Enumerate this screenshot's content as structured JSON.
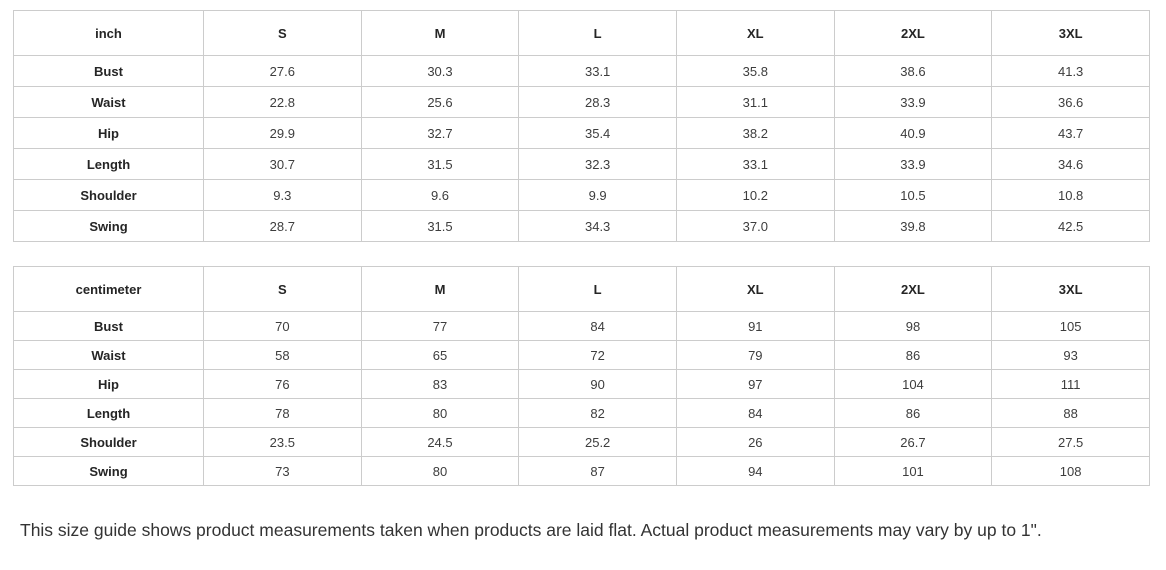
{
  "tables": [
    {
      "unit": "inch",
      "sizes": [
        "S",
        "M",
        "L",
        "XL",
        "2XL",
        "3XL"
      ],
      "rows": [
        {
          "label": "Bust",
          "values": [
            "27.6",
            "30.3",
            "33.1",
            "35.8",
            "38.6",
            "41.3"
          ]
        },
        {
          "label": "Waist",
          "values": [
            "22.8",
            "25.6",
            "28.3",
            "31.1",
            "33.9",
            "36.6"
          ]
        },
        {
          "label": "Hip",
          "values": [
            "29.9",
            "32.7",
            "35.4",
            "38.2",
            "40.9",
            "43.7"
          ]
        },
        {
          "label": "Length",
          "values": [
            "30.7",
            "31.5",
            "32.3",
            "33.1",
            "33.9",
            "34.6"
          ]
        },
        {
          "label": "Shoulder",
          "values": [
            "9.3",
            "9.6",
            "9.9",
            "10.2",
            "10.5",
            "10.8"
          ]
        },
        {
          "label": "Swing",
          "values": [
            "28.7",
            "31.5",
            "34.3",
            "37.0",
            "39.8",
            "42.5"
          ]
        }
      ]
    },
    {
      "unit": "centimeter",
      "sizes": [
        "S",
        "M",
        "L",
        "XL",
        "2XL",
        "3XL"
      ],
      "rows": [
        {
          "label": "Bust",
          "values": [
            "70",
            "77",
            "84",
            "91",
            "98",
            "105"
          ]
        },
        {
          "label": "Waist",
          "values": [
            "58",
            "65",
            "72",
            "79",
            "86",
            "93"
          ]
        },
        {
          "label": "Hip",
          "values": [
            "76",
            "83",
            "90",
            "97",
            "104",
            "111"
          ]
        },
        {
          "label": "Length",
          "values": [
            "78",
            "80",
            "82",
            "84",
            "86",
            "88"
          ]
        },
        {
          "label": "Shoulder",
          "values": [
            "23.5",
            "24.5",
            "25.2",
            "26",
            "26.7",
            "27.5"
          ]
        },
        {
          "label": "Swing",
          "values": [
            "73",
            "80",
            "87",
            "94",
            "101",
            "108"
          ]
        }
      ]
    }
  ],
  "footer": {
    "note": "This size guide shows product measurements taken when products are laid flat. Actual product measurements may vary by up to 1\"."
  },
  "colors": {
    "border": "#cccccc",
    "header_text": "#252525",
    "value_text": "#3d3d3d",
    "note_text": "#333333"
  }
}
